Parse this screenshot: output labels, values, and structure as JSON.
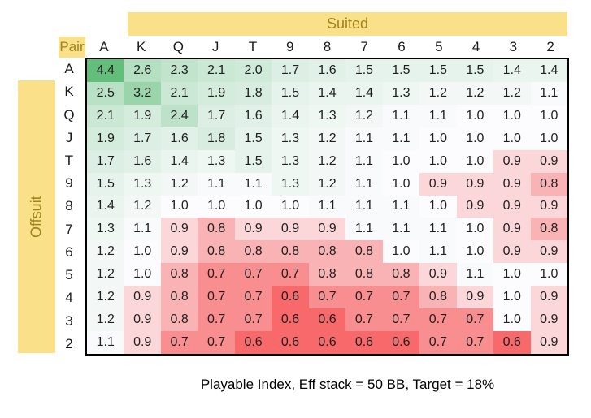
{
  "colors": {
    "band_background": "#fae189",
    "band_text": "#a0821f",
    "grid_border": "#000000",
    "page_background": "#ffffff"
  },
  "chart_data": {
    "type": "heatmap",
    "title": "Playable Index, Eff stack = 50 BB, Target = 18%",
    "col_axis_label": "Suited",
    "row_axis_label": "Offsuit",
    "corner_label": "Pair",
    "columns": [
      "A",
      "K",
      "Q",
      "J",
      "T",
      "9",
      "8",
      "7",
      "6",
      "5",
      "4",
      "3",
      "2"
    ],
    "rows": [
      "A",
      "K",
      "Q",
      "J",
      "T",
      "9",
      "8",
      "7",
      "6",
      "5",
      "4",
      "3",
      "2"
    ],
    "values": [
      [
        4.4,
        2.6,
        2.3,
        2.1,
        2.0,
        1.7,
        1.6,
        1.5,
        1.5,
        1.5,
        1.5,
        1.4,
        1.4
      ],
      [
        2.5,
        3.2,
        2.1,
        1.9,
        1.8,
        1.5,
        1.4,
        1.4,
        1.3,
        1.2,
        1.2,
        1.2,
        1.1
      ],
      [
        2.1,
        1.9,
        2.4,
        1.7,
        1.6,
        1.4,
        1.3,
        1.2,
        1.1,
        1.1,
        1.0,
        1.0,
        1.0
      ],
      [
        1.9,
        1.7,
        1.6,
        1.8,
        1.5,
        1.3,
        1.2,
        1.1,
        1.1,
        1.0,
        1.0,
        1.0,
        1.0
      ],
      [
        1.7,
        1.6,
        1.4,
        1.3,
        1.5,
        1.3,
        1.2,
        1.1,
        1.0,
        1.0,
        1.0,
        0.9,
        0.9
      ],
      [
        1.5,
        1.3,
        1.2,
        1.1,
        1.1,
        1.3,
        1.2,
        1.1,
        1.0,
        0.9,
        0.9,
        0.9,
        0.8
      ],
      [
        1.4,
        1.2,
        1.0,
        1.0,
        1.0,
        1.0,
        1.1,
        1.1,
        1.1,
        1.0,
        0.9,
        0.9,
        0.9
      ],
      [
        1.3,
        1.1,
        0.9,
        0.8,
        0.9,
        0.9,
        0.9,
        1.1,
        1.1,
        1.1,
        1.0,
        0.9,
        0.8
      ],
      [
        1.2,
        1.0,
        0.9,
        0.8,
        0.8,
        0.8,
        0.8,
        0.8,
        1.0,
        1.1,
        1.0,
        0.9,
        0.9
      ],
      [
        1.2,
        1.0,
        0.8,
        0.7,
        0.7,
        0.7,
        0.8,
        0.8,
        0.8,
        0.9,
        1.1,
        1.0,
        1.0
      ],
      [
        1.2,
        0.9,
        0.8,
        0.7,
        0.7,
        0.6,
        0.7,
        0.7,
        0.7,
        0.8,
        0.9,
        1.0,
        0.9
      ],
      [
        1.2,
        0.9,
        0.8,
        0.7,
        0.7,
        0.6,
        0.6,
        0.7,
        0.7,
        0.7,
        0.7,
        1.0,
        0.9
      ],
      [
        1.1,
        0.9,
        0.7,
        0.7,
        0.6,
        0.6,
        0.6,
        0.6,
        0.6,
        0.7,
        0.7,
        0.6,
        0.9
      ]
    ],
    "value_format_decimals": 1,
    "color_scale": {
      "min_value": 0.6,
      "mid_value": 1.0,
      "max_value": 4.4,
      "min_color": "#F8696B",
      "mid_color": "#FCFCFF",
      "max_color": "#63BE7B"
    },
    "legend": "none",
    "grid": "off"
  }
}
